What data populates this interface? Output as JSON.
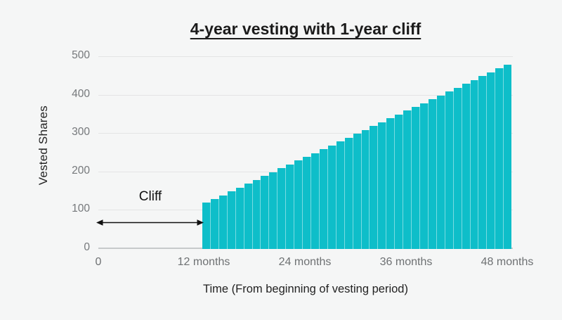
{
  "chart_data": {
    "type": "bar",
    "title": "4-year vesting with 1-year cliff",
    "xlabel": "Time (From beginning of vesting period)",
    "ylabel": "Vested Shares",
    "annotation": {
      "label": "Cliff",
      "from_month": 0,
      "to_month": 12
    },
    "x_months": [
      12,
      13,
      14,
      15,
      16,
      17,
      18,
      19,
      20,
      21,
      22,
      23,
      24,
      25,
      26,
      27,
      28,
      29,
      30,
      31,
      32,
      33,
      34,
      35,
      36,
      37,
      38,
      39,
      40,
      41,
      42,
      43,
      44,
      45,
      46,
      47,
      48
    ],
    "values": [
      120,
      130,
      140,
      150,
      160,
      170,
      180,
      190,
      200,
      210,
      220,
      230,
      240,
      250,
      260,
      270,
      280,
      290,
      300,
      310,
      320,
      330,
      340,
      350,
      360,
      370,
      380,
      390,
      400,
      410,
      420,
      430,
      440,
      450,
      460,
      470,
      480
    ],
    "yticks": [
      0,
      100,
      200,
      300,
      400,
      500
    ],
    "xticks": [
      {
        "month": 0,
        "label": "0"
      },
      {
        "month": 12,
        "label": "12 months"
      },
      {
        "month": 24,
        "label": "24 months"
      },
      {
        "month": 36,
        "label": "36 months"
      },
      {
        "month": 48,
        "label": "48 months"
      }
    ],
    "ylim": [
      0,
      500
    ],
    "grid": true,
    "legend": false,
    "bar_color": "#0ebec9",
    "background_color": "#f5f6f6"
  }
}
